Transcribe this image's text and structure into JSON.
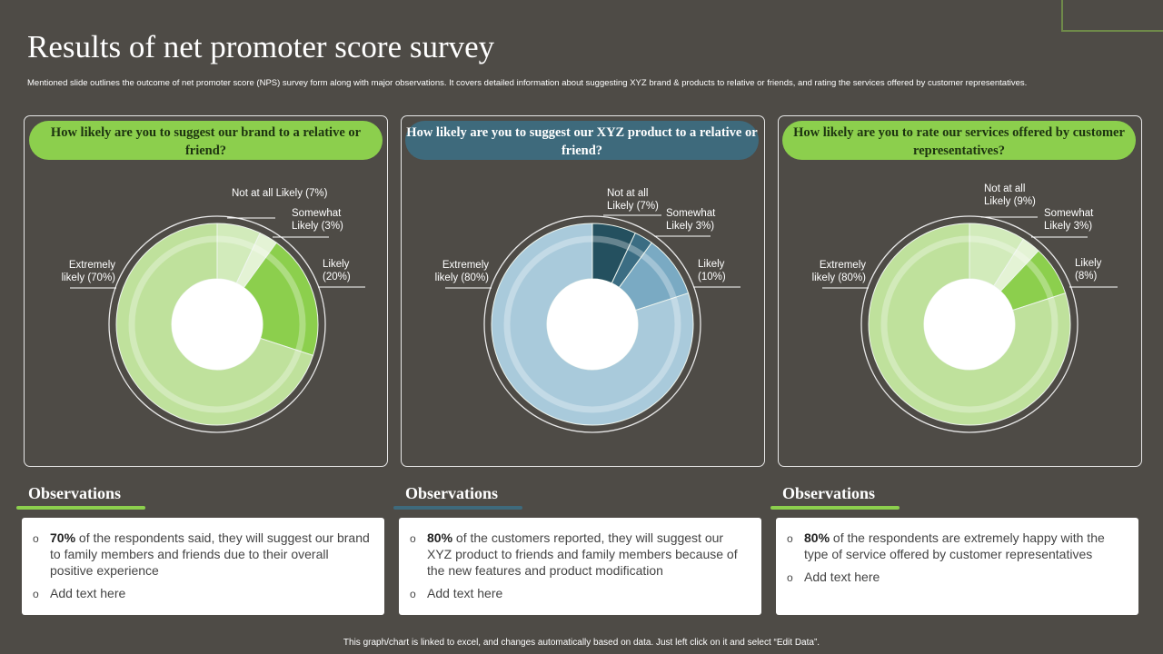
{
  "title": "Results of net promoter score survey",
  "subtitle": "Mentioned slide outlines the outcome of net promoter score (NPS) survey form along with major observations. It covers detailed information about suggesting XYZ brand & products to relative or friends, and rating the services offered by customer representatives.",
  "footer": "This graph/chart is linked to excel, and changes automatically based on data. Just left click on it and select “Edit Data”.",
  "chart_data": [
    {
      "type": "pie",
      "title": "How likely are you to suggest our brand  to a relative or friend?",
      "header_color": "#8ccf4d",
      "categories": [
        "Not at all Likely",
        "Somewhat Likely",
        "Likely",
        "Extremely likely"
      ],
      "values": [
        7,
        3,
        20,
        70
      ],
      "labels": [
        "Not at all Likely (7%)",
        "Somewhat Likely (3%)",
        "Likely (20%)",
        "Extremely likely (70%)"
      ],
      "colors": [
        "#d2ebbb",
        "#e4f3d5",
        "#8ccf4d",
        "#bfe19c"
      ]
    },
    {
      "type": "pie",
      "title": "How likely are you to suggest our XYZ product to a relative or friend?",
      "header_color": "#3e6a7c",
      "categories": [
        "Not at all Likely",
        "Somewhat Likely",
        "Likely",
        "Extremely likely"
      ],
      "values": [
        7,
        3,
        10,
        80
      ],
      "labels": [
        "Not at all Likely (7%)",
        "Somewhat Likely 3%)",
        "Likely (10%)",
        "Extremely likely (80%)"
      ],
      "colors": [
        "#24505f",
        "#3b6d83",
        "#7aaac3",
        "#a9cadb"
      ]
    },
    {
      "type": "pie",
      "title": "How likely are you to rate our services offered by customer representatives?",
      "header_color": "#8ccf4d",
      "categories": [
        "Not at all Likely",
        "Somewhat Likely",
        "Likely",
        "Extremely likely"
      ],
      "values": [
        9,
        3,
        8,
        80
      ],
      "labels": [
        "Not at all Likely (9%)",
        "Somewhat Likely 3%)",
        "Likely (8%)",
        "Extremely likely (80%)"
      ],
      "colors": [
        "#d2ebbb",
        "#e4f3d5",
        "#8ccf4d",
        "#bfe19c"
      ]
    }
  ],
  "observations": [
    {
      "heading": "Observations",
      "bar_color": "#8ccf4d",
      "items": [
        {
          "bold": "70%",
          "text": " of the respondents said, they will suggest our brand to family members and friends due to their overall positive experience"
        },
        {
          "bold": "",
          "text": "Add text here"
        }
      ]
    },
    {
      "heading": "Observations",
      "bar_color": "#3e6a7c",
      "items": [
        {
          "bold": "80%",
          "text": " of the customers reported, they will suggest our XYZ  product to friends and family members because of the new features and product modification"
        },
        {
          "bold": "",
          "text": "Add text here"
        }
      ]
    },
    {
      "heading": "Observations",
      "bar_color": "#8ccf4d",
      "items": [
        {
          "bold": "80%",
          "text": " of the respondents are extremely happy with the type of service offered by customer representatives"
        },
        {
          "bold": "",
          "text": "Add text here"
        }
      ]
    }
  ]
}
